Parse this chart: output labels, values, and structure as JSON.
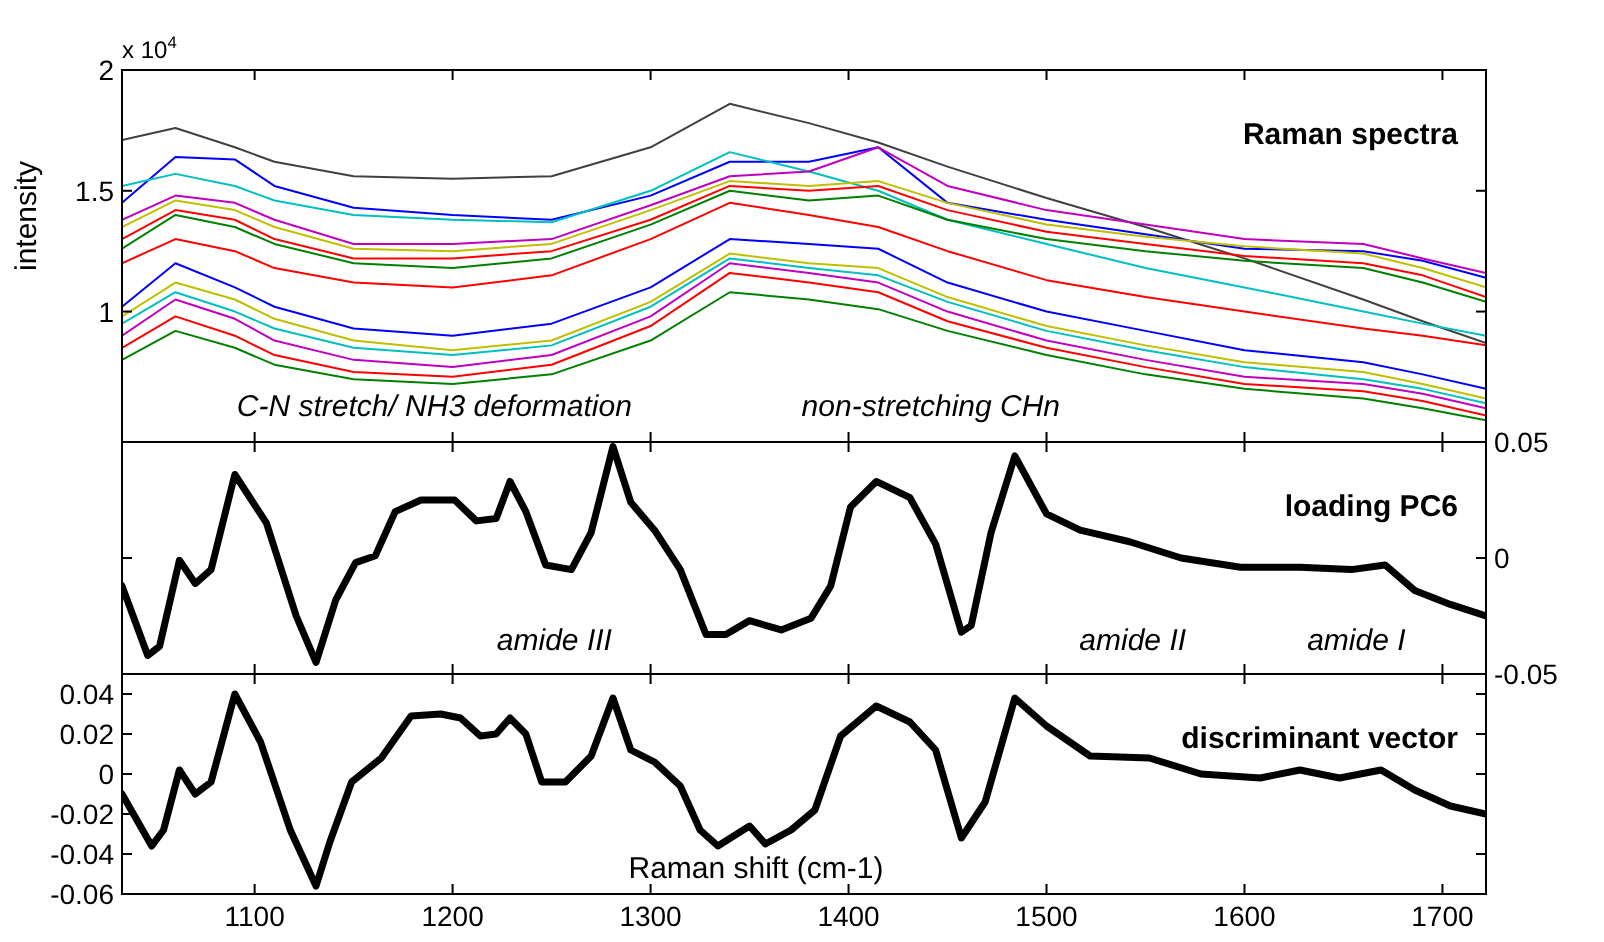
{
  "chart_data": [
    {
      "type": "line",
      "title": "Raman spectra",
      "ylabel": "intensity",
      "annotations": [
        "x 10$^{4}$",
        "C-N stretch/ NH3 deformation",
        "non-stretching CHn"
      ],
      "x": [
        1033,
        1060,
        1090,
        1110,
        1150,
        1200,
        1250,
        1300,
        1340,
        1380,
        1415,
        1450,
        1500,
        1550,
        1600,
        1660,
        1690,
        1722
      ],
      "xlim": [
        1033,
        1722
      ],
      "xticks": [
        1100,
        1200,
        1300,
        1400,
        1500,
        1600,
        1700
      ],
      "ylim": [
        0.46,
        2
      ],
      "yticks": [
        1,
        1.5,
        2
      ],
      "tick_labels": "y",
      "series": [
        {
          "color": "#404040",
          "values": [
            1.71,
            1.76,
            1.68,
            1.62,
            1.56,
            1.55,
            1.56,
            1.68,
            1.86,
            1.78,
            1.7,
            1.6,
            1.47,
            1.35,
            1.22,
            1.05,
            0.96,
            0.87
          ]
        },
        {
          "color": "#0000ff",
          "values": [
            1.45,
            1.64,
            1.63,
            1.52,
            1.43,
            1.4,
            1.38,
            1.48,
            1.62,
            1.62,
            1.68,
            1.45,
            1.38,
            1.32,
            1.26,
            1.25,
            1.21,
            1.14
          ]
        },
        {
          "color": "#00bfbf",
          "values": [
            1.52,
            1.57,
            1.52,
            1.46,
            1.4,
            1.38,
            1.37,
            1.5,
            1.66,
            1.58,
            1.5,
            1.38,
            1.28,
            1.18,
            1.1,
            1.0,
            0.95,
            0.9
          ]
        },
        {
          "color": "#bf00bf",
          "values": [
            1.38,
            1.48,
            1.45,
            1.38,
            1.28,
            1.28,
            1.3,
            1.44,
            1.56,
            1.58,
            1.68,
            1.52,
            1.42,
            1.36,
            1.3,
            1.28,
            1.22,
            1.16
          ]
        },
        {
          "color": "#bfbf00",
          "values": [
            1.35,
            1.46,
            1.42,
            1.35,
            1.26,
            1.25,
            1.28,
            1.42,
            1.54,
            1.52,
            1.54,
            1.45,
            1.36,
            1.31,
            1.27,
            1.24,
            1.18,
            1.1
          ]
        },
        {
          "color": "#ff0000",
          "values": [
            1.3,
            1.42,
            1.38,
            1.3,
            1.22,
            1.22,
            1.25,
            1.38,
            1.52,
            1.5,
            1.52,
            1.42,
            1.33,
            1.28,
            1.23,
            1.2,
            1.15,
            1.06
          ]
        },
        {
          "color": "#008000",
          "values": [
            1.26,
            1.4,
            1.35,
            1.28,
            1.2,
            1.18,
            1.22,
            1.36,
            1.5,
            1.46,
            1.48,
            1.38,
            1.3,
            1.25,
            1.21,
            1.18,
            1.12,
            1.04
          ]
        },
        {
          "color": "#ff0000",
          "values": [
            1.2,
            1.3,
            1.25,
            1.18,
            1.12,
            1.1,
            1.15,
            1.3,
            1.45,
            1.4,
            1.35,
            1.25,
            1.13,
            1.06,
            1.0,
            0.93,
            0.9,
            0.86
          ]
        },
        {
          "color": "#0000ff",
          "values": [
            1.02,
            1.2,
            1.1,
            1.02,
            0.93,
            0.9,
            0.95,
            1.1,
            1.3,
            1.28,
            1.26,
            1.12,
            1.0,
            0.92,
            0.84,
            0.79,
            0.74,
            0.68
          ]
        },
        {
          "color": "#bfbf00",
          "values": [
            0.98,
            1.12,
            1.05,
            0.97,
            0.88,
            0.84,
            0.88,
            1.04,
            1.24,
            1.2,
            1.18,
            1.06,
            0.94,
            0.86,
            0.79,
            0.75,
            0.7,
            0.64
          ]
        },
        {
          "color": "#00bfbf",
          "values": [
            0.95,
            1.08,
            1.0,
            0.93,
            0.85,
            0.82,
            0.86,
            1.02,
            1.22,
            1.18,
            1.15,
            1.04,
            0.92,
            0.84,
            0.77,
            0.72,
            0.68,
            0.62
          ]
        },
        {
          "color": "#bf00bf",
          "values": [
            0.9,
            1.05,
            0.97,
            0.88,
            0.8,
            0.77,
            0.82,
            0.98,
            1.2,
            1.16,
            1.12,
            1.0,
            0.88,
            0.8,
            0.73,
            0.7,
            0.66,
            0.6
          ]
        },
        {
          "color": "#ff0000",
          "values": [
            0.85,
            0.98,
            0.9,
            0.82,
            0.75,
            0.73,
            0.78,
            0.94,
            1.16,
            1.12,
            1.08,
            0.96,
            0.85,
            0.77,
            0.7,
            0.67,
            0.63,
            0.57
          ]
        },
        {
          "color": "#008000",
          "values": [
            0.8,
            0.92,
            0.85,
            0.78,
            0.72,
            0.7,
            0.74,
            0.88,
            1.08,
            1.05,
            1.01,
            0.92,
            0.82,
            0.74,
            0.68,
            0.64,
            0.6,
            0.55
          ]
        }
      ]
    },
    {
      "type": "line",
      "title": "loading PC6",
      "annotations": [
        "amide III",
        "amide II",
        "amide I"
      ],
      "xlim": [
        1033,
        1722
      ],
      "xticks": [
        1100,
        1200,
        1300,
        1400,
        1500,
        1600,
        1700
      ],
      "y2lim": [
        -0.05,
        0.05
      ],
      "y2ticks": [
        -0.05,
        0,
        0.05
      ],
      "tick_labels": "y",
      "series": [
        {
          "color": "#000000",
          "axis": "y2",
          "x": [
            1033,
            1046,
            1052,
            1062,
            1070,
            1078,
            1090,
            1106,
            1121,
            1131,
            1141,
            1151,
            1161,
            1171,
            1184,
            1201,
            1212,
            1222,
            1229,
            1237,
            1247,
            1260,
            1270,
            1281,
            1290,
            1302,
            1315,
            1328,
            1338,
            1350,
            1366,
            1381,
            1391,
            1401,
            1414,
            1431,
            1444,
            1457,
            1462,
            1472,
            1484,
            1500,
            1517,
            1542,
            1568,
            1598,
            1628,
            1654,
            1671,
            1686,
            1704,
            1722
          ],
          "values": [
            -0.012,
            -0.042,
            -0.038,
            -0.001,
            -0.011,
            -0.005,
            0.036,
            0.015,
            -0.025,
            -0.045,
            -0.018,
            -0.002,
            0.001,
            0.02,
            0.025,
            0.025,
            0.016,
            0.017,
            0.033,
            0.02,
            -0.003,
            -0.005,
            0.011,
            0.048,
            0.024,
            0.012,
            -0.005,
            -0.033,
            -0.033,
            -0.027,
            -0.031,
            -0.026,
            -0.012,
            0.022,
            0.033,
            0.026,
            0.006,
            -0.032,
            -0.029,
            0.011,
            0.044,
            0.019,
            0.012,
            0.007,
            0,
            -0.004,
            -0.004,
            -0.005,
            -0.003,
            -0.014,
            -0.02,
            -0.025
          ]
        }
      ]
    },
    {
      "type": "line",
      "title": "discriminant vector",
      "xlabel": "Raman shift (cm-1)",
      "xlim": [
        1033,
        1722
      ],
      "xticks": [
        1100,
        1200,
        1300,
        1400,
        1500,
        1600,
        1700
      ],
      "ylim": [
        -0.06,
        0.05
      ],
      "yticks": [
        -0.06,
        -0.04,
        -0.02,
        0,
        0.02,
        0.04
      ],
      "series": [
        {
          "color": "#000000",
          "x": [
            1033,
            1048,
            1054,
            1062,
            1070,
            1078,
            1090,
            1103,
            1118,
            1131,
            1138,
            1149,
            1164,
            1179,
            1194,
            1204,
            1214,
            1222,
            1229,
            1237,
            1245,
            1257,
            1270,
            1281,
            1290,
            1302,
            1315,
            1325,
            1334,
            1350,
            1358,
            1371,
            1383,
            1396,
            1414,
            1431,
            1444,
            1457,
            1469,
            1484,
            1500,
            1522,
            1552,
            1578,
            1608,
            1628,
            1648,
            1669,
            1686,
            1704,
            1722
          ],
          "values": [
            -0.01,
            -0.036,
            -0.028,
            0.002,
            -0.01,
            -0.004,
            0.04,
            0.016,
            -0.028,
            -0.056,
            -0.034,
            -0.004,
            0.008,
            0.029,
            0.03,
            0.028,
            0.019,
            0.02,
            0.028,
            0.02,
            -0.004,
            -0.004,
            0.009,
            0.038,
            0.012,
            0.006,
            -0.006,
            -0.028,
            -0.036,
            -0.026,
            -0.035,
            -0.028,
            -0.018,
            0.019,
            0.034,
            0.026,
            0.012,
            -0.032,
            -0.014,
            0.038,
            0.024,
            0.009,
            0.008,
            0,
            -0.002,
            0.002,
            -0.002,
            0.002,
            -0.008,
            -0.016,
            -0.02
          ]
        }
      ]
    }
  ]
}
